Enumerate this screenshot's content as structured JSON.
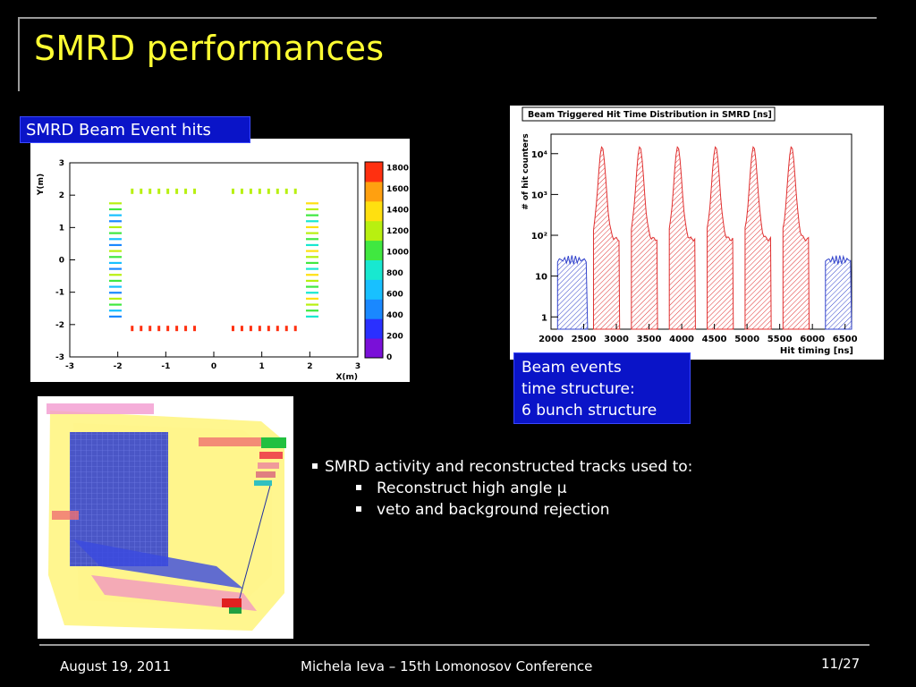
{
  "slide": {
    "title": "SMRD performances",
    "footer": {
      "date": "August 19, 2011",
      "author": "Michela Ieva – 15th Lomonosov Conference",
      "page": "11/27"
    }
  },
  "labels": {
    "hits_label": "SMRD Beam Event hits",
    "beam_lines": [
      "Beam events",
      "time structure:",
      "6 bunch structure"
    ]
  },
  "bullets": {
    "main": "SMRD activity and reconstructed tracks used to:",
    "sub": [
      "Reconstruct high angle μ",
      "veto and background rejection"
    ]
  },
  "chart_data": [
    {
      "type": "heatmap",
      "xlabel": "X(m)",
      "ylabel": "Y(m)",
      "xlim": [
        -3,
        3
      ],
      "ylim": [
        -3,
        3
      ],
      "xticks": [
        "-3",
        "-2",
        "-1",
        "0",
        "1",
        "2",
        "3"
      ],
      "yticks": [
        "-3",
        "-2",
        "-1",
        "0",
        "1",
        "2",
        "3"
      ],
      "colorbar": {
        "min": 0,
        "max": 1800,
        "ticks": [
          "0",
          "200",
          "400",
          "600",
          "800",
          "1000",
          "1200",
          "1400",
          "1600",
          "1800"
        ]
      },
      "groups": [
        {
          "name": "top",
          "x_range": [
            -1.7,
            -0.4
          ],
          "y": 2.12,
          "count": 8,
          "level": 1250
        },
        {
          "name": "top",
          "x_range": [
            0.4,
            1.7
          ],
          "y": 2.12,
          "count": 8,
          "level": 1250
        },
        {
          "name": "bottom",
          "x_range": [
            -1.7,
            -0.4
          ],
          "y": -2.12,
          "count": 8,
          "level": 1650
        },
        {
          "name": "bottom",
          "x_range": [
            0.4,
            1.7
          ],
          "y": -2.12,
          "count": 8,
          "level": 1750
        },
        {
          "name": "left",
          "x": -2.05,
          "y_range": [
            -1.75,
            1.75
          ],
          "count": 20,
          "level": 800
        },
        {
          "name": "right",
          "x": 2.05,
          "y_range": [
            -1.75,
            1.75
          ],
          "count": 20,
          "level": 1050
        }
      ]
    },
    {
      "type": "area",
      "title": "Beam Triggered Hit Time Distribution in SMRD [ns]",
      "xlabel": "Hit timing [ns]",
      "ylabel": "# of hit counters",
      "xlim": [
        2000,
        6600
      ],
      "ylim": [
        0.5,
        30000
      ],
      "log_y": true,
      "xticks": [
        "2000",
        "2500",
        "3000",
        "3500",
        "4000",
        "4500",
        "5000",
        "5500",
        "6000",
        "6500"
      ],
      "yticks": [
        "1",
        "10",
        "10²",
        "10³",
        "10⁴"
      ],
      "bunch_peaks_ns": [
        2780,
        3360,
        3940,
        4520,
        5100,
        5680
      ],
      "bunch_peak_counts": 15000,
      "bunch_plateau_counts": 80,
      "background_ranges_ns": [
        [
          2100,
          2560
        ],
        [
          6200,
          6600
        ]
      ],
      "background_counts": 25,
      "background_color": "#3344cc",
      "bunch_color": "#e03030"
    }
  ]
}
